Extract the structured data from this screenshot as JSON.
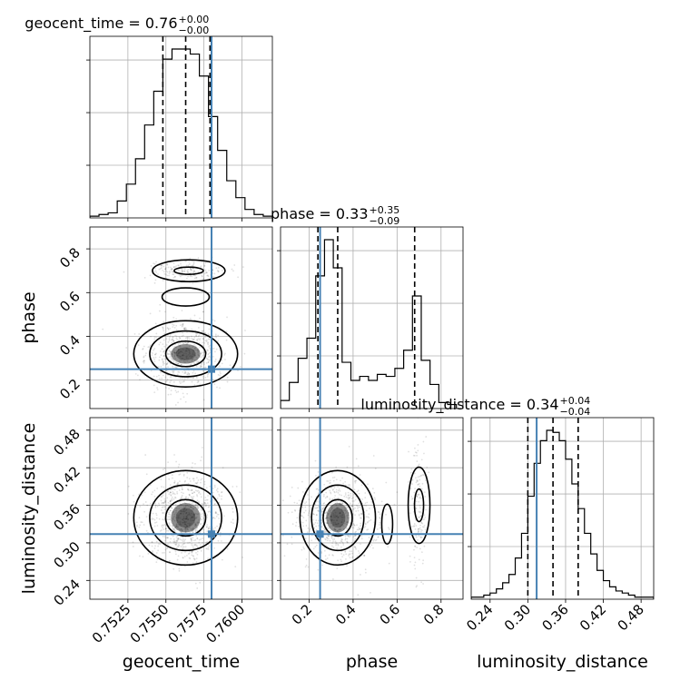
{
  "chart_data": {
    "type": "corner",
    "parameters": [
      "geocent_time",
      "phase",
      "luminosity_distance"
    ],
    "axis_labels": {
      "geocent_time": "geocent_time",
      "phase": "phase",
      "luminosity_distance": "luminosity_distance"
    },
    "ranges": {
      "geocent_time": [
        0.75,
        0.762
      ],
      "phase": [
        0.07,
        0.9
      ],
      "luminosity_distance": [
        0.21,
        0.5
      ]
    },
    "ticks": {
      "geocent_time": [
        "0.7525",
        "0.7550",
        "0.7575",
        "0.7600"
      ],
      "phase": [
        "0.2",
        "0.4",
        "0.6",
        "0.8"
      ],
      "luminosity_distance": [
        "0.24",
        "0.30",
        "0.36",
        "0.42",
        "0.48"
      ]
    },
    "truths": {
      "geocent_time": 0.758,
      "phase": 0.25,
      "luminosity_distance": 0.314
    },
    "titles": [
      {
        "param": "geocent_time",
        "text": "geocent_time = 0.76",
        "plus": "+0.00",
        "minus": "−0.00"
      },
      {
        "param": "phase",
        "text": "phase = 0.33",
        "plus": "+0.35",
        "minus": "−0.09"
      },
      {
        "param": "luminosity_distance",
        "text": "luminosity_distance = 0.34",
        "plus": "+0.04",
        "minus": "−0.04"
      }
    ],
    "quantiles": {
      "geocent_time": [
        0.7548,
        0.7563,
        0.7579
      ],
      "phase": [
        0.24,
        0.33,
        0.68
      ],
      "luminosity_distance": [
        0.3,
        0.34,
        0.38
      ]
    },
    "histograms": {
      "geocent_time": {
        "edges": [
          0.75,
          0.7506,
          0.7512,
          0.7518,
          0.7524,
          0.753,
          0.7536,
          0.7542,
          0.7548,
          0.7554,
          0.756,
          0.7566,
          0.7572,
          0.7578,
          0.7584,
          0.759,
          0.7596,
          0.7602,
          0.7608,
          0.7614,
          0.762
        ],
        "counts": [
          1,
          2,
          3,
          10,
          20,
          35,
          55,
          75,
          94,
          100,
          100,
          97,
          84,
          60,
          40,
          22,
          12,
          5,
          2,
          1
        ]
      },
      "phase": {
        "edges": [
          0.07,
          0.11,
          0.15,
          0.19,
          0.23,
          0.27,
          0.31,
          0.35,
          0.39,
          0.43,
          0.47,
          0.51,
          0.55,
          0.59,
          0.63,
          0.67,
          0.71,
          0.75,
          0.79,
          0.83,
          0.87
        ],
        "counts": [
          4,
          13,
          25,
          35,
          66,
          84,
          70,
          23,
          14,
          16,
          14,
          17,
          16,
          20,
          29,
          56,
          24,
          12,
          3,
          2
        ]
      },
      "luminosity_distance": {
        "edges": [
          0.21,
          0.22,
          0.23,
          0.24,
          0.25,
          0.26,
          0.27,
          0.28,
          0.29,
          0.3,
          0.31,
          0.32,
          0.33,
          0.34,
          0.35,
          0.36,
          0.37,
          0.38,
          0.39,
          0.4,
          0.41,
          0.42,
          0.43,
          0.44,
          0.45,
          0.46,
          0.47,
          0.48,
          0.49,
          0.5
        ],
        "counts": [
          1,
          1,
          2,
          3,
          5,
          8,
          12,
          20,
          32,
          50,
          66,
          77,
          82,
          81,
          77,
          68,
          56,
          44,
          32,
          22,
          14,
          9,
          6,
          4,
          3,
          2,
          1,
          1,
          1
        ]
      }
    },
    "grid": true
  }
}
